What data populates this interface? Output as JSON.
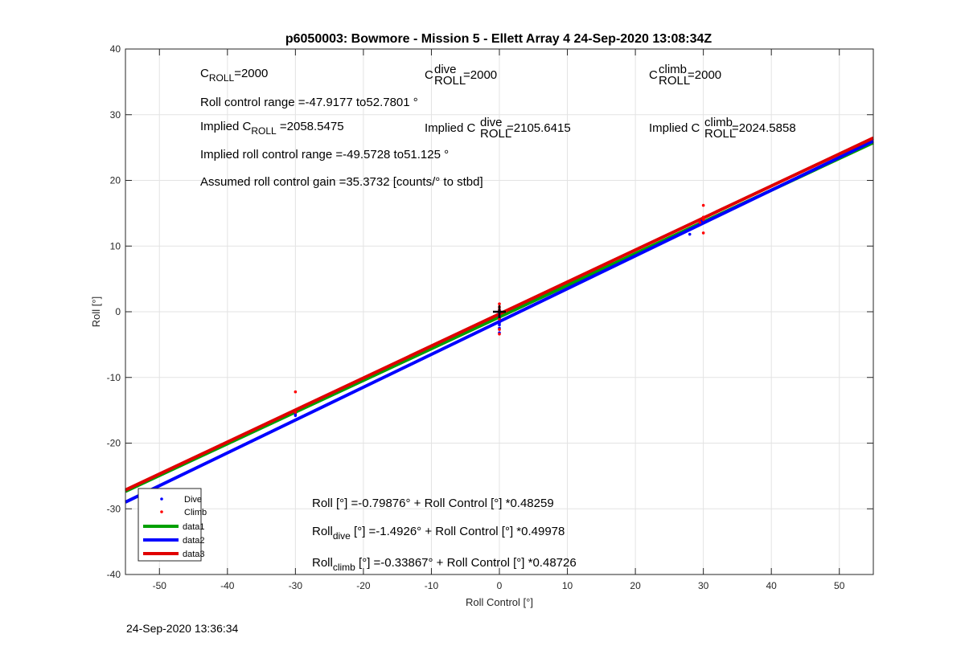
{
  "chart_data": {
    "type": "scatter",
    "title": "p6050003: Bowmore - Mission 5 - Ellett Array 4 24-Sep-2020 13:08:34Z",
    "xlabel": "Roll Control [°]",
    "ylabel": "Roll [°]",
    "xlim": [
      -55,
      55
    ],
    "ylim": [
      -40,
      40
    ],
    "xticks": [
      -50,
      -40,
      -30,
      -20,
      -10,
      0,
      10,
      20,
      30,
      40,
      50
    ],
    "yticks": [
      -40,
      -30,
      -20,
      -10,
      0,
      10,
      20,
      30,
      40
    ],
    "grid": true,
    "legend_position": "bottom-left",
    "series": [
      {
        "name": "Dive",
        "kind": "points",
        "color": "#0000ff",
        "x": [
          -30,
          -30,
          0,
          0,
          0,
          0,
          0,
          0,
          0,
          0,
          0,
          28,
          29.5,
          29.8
        ],
        "y": [
          -15.5,
          -15.8,
          -3.2,
          -2.5,
          -2.0,
          -1.7,
          -1.4,
          -1.0,
          -0.6,
          -0.3,
          0.2,
          11.8,
          13.5,
          13.8
        ]
      },
      {
        "name": "Climb",
        "kind": "points",
        "color": "#ff0000",
        "x": [
          -30,
          -30,
          0,
          0,
          0,
          0,
          0,
          0,
          0,
          30,
          30,
          30,
          30,
          29.5
        ],
        "y": [
          -12.2,
          -15.3,
          -3.4,
          -2.7,
          -1.1,
          -0.4,
          0.3,
          0.7,
          1.2,
          16.2,
          14.4,
          14.0,
          12.0,
          13.6
        ]
      },
      {
        "name": "data1",
        "kind": "line",
        "color": "#00a000",
        "intercept": -0.79876,
        "slope": 0.48259
      },
      {
        "name": "data2",
        "kind": "line",
        "color": "#0000ff",
        "intercept": -1.4926,
        "slope": 0.49978
      },
      {
        "name": "data3",
        "kind": "line",
        "color": "#e00000",
        "intercept": -0.33867,
        "slope": 0.48726
      }
    ],
    "marker": {
      "x": 0,
      "y": 0,
      "color": "#000000"
    },
    "annotations": {
      "croll": {
        "base": "C",
        "sub": "ROLL",
        "rest": "=2000"
      },
      "croll_dive": {
        "base": "C",
        "sup": "dive",
        "sub": "ROLL",
        "rest": " =2000"
      },
      "croll_climb": {
        "base": "C",
        "sup": "climb",
        "sub": "ROLL",
        "rest": " =2000"
      },
      "roll_range": "Roll control range =-47.9177 to52.7801 °",
      "implied_croll": {
        "pre": "Implied C",
        "sub": "ROLL",
        "rest": " =2058.5475"
      },
      "implied_croll_dive": {
        "pre": "Implied C",
        "sup": "dive",
        "sub": "ROLL",
        "rest": " =2105.6415"
      },
      "implied_croll_climb": {
        "pre": "Implied C",
        "sup": "climb",
        "sub": "ROLL",
        "rest": " =2024.5858"
      },
      "implied_range": "Implied roll control range =-49.5728 to51.125 °",
      "gain": "Assumed roll control gain =35.3732 [counts/° to stbd]",
      "fit_all": {
        "pre": "Roll [°] =-0.79876° + Roll Control [°] *0.48259"
      },
      "fit_dive": {
        "pre": "Roll",
        "sub": "dive",
        "rest": " [°] =-1.4926° + Roll Control [°] *0.49978"
      },
      "fit_climb": {
        "pre": "Roll",
        "sub": "climb",
        "rest": " [°] =-0.33867° + Roll Control [°] *0.48726"
      }
    },
    "footer_timestamp": "24-Sep-2020 13:36:34"
  }
}
